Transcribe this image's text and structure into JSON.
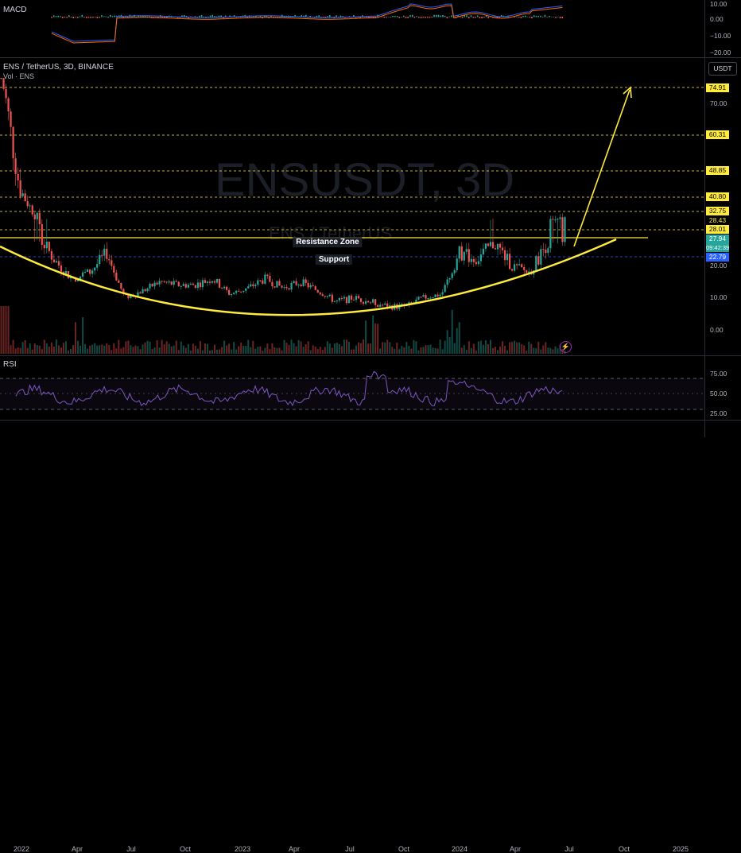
{
  "macd": {
    "label": "MACD",
    "axis": [
      "10.00",
      "0.00",
      "−10.00",
      "−20.00"
    ]
  },
  "main": {
    "symbol_line": "ENS / TetherUS, 3D, BINANCE",
    "volume_label": "Vol · ENS",
    "watermark_symbol": "ENSUSDT, 3D",
    "watermark_pair": "ENS / TetherUS",
    "currency_button": "USDT",
    "axis": [
      "70.00",
      "20.00",
      "10.00",
      "0.00"
    ],
    "price_tags": [
      {
        "value": "74.91",
        "kind": "level"
      },
      {
        "value": "60.31",
        "kind": "level"
      },
      {
        "value": "48.85",
        "kind": "level"
      },
      {
        "value": "40.80",
        "kind": "level"
      },
      {
        "value": "32.75",
        "kind": "level"
      },
      {
        "value": "28.43",
        "kind": "plain"
      },
      {
        "value": "28.01",
        "kind": "level"
      },
      {
        "value": "27.94",
        "kind": "last"
      },
      {
        "value": "09:42:39",
        "kind": "countdown"
      },
      {
        "value": "22.79",
        "kind": "support"
      }
    ],
    "resistance_label": "Resistance Zone",
    "support_label": "Support"
  },
  "rsi": {
    "label": "RSI",
    "axis": [
      "75.00",
      "50.00",
      "25.00"
    ]
  },
  "time_axis": [
    "2022",
    "Apr",
    "Jul",
    "Oct",
    "2023",
    "Apr",
    "Jul",
    "Oct",
    "2024",
    "Apr",
    "Jul",
    "Oct",
    "2025"
  ],
  "colors": {
    "level_tag": "#ffeb3b",
    "last_tag": "#26a69a",
    "support_tag": "#2962ff",
    "bull": "#26a69a",
    "bear": "#ef5350",
    "annotation": "#ffeb3b"
  },
  "chart_data": {
    "type": "candlestick",
    "title": "ENS / TetherUS, 3D, BINANCE",
    "ylim": [
      0,
      80
    ],
    "horizontal_levels": [
      74.91,
      60.31,
      48.85,
      40.8,
      32.75,
      28.01
    ],
    "resistance_zone": 28.43,
    "support": 22.79,
    "last_price": 27.94,
    "close_path": [
      [
        "2021-11",
        80
      ],
      [
        "2021-12",
        45
      ],
      [
        "2022-01",
        30
      ],
      [
        "2022-02",
        22
      ],
      [
        "2022-03",
        16
      ],
      [
        "2022-04",
        18
      ],
      [
        "2022-05",
        24
      ],
      [
        "2022-06",
        10
      ],
      [
        "2022-07",
        12
      ],
      [
        "2022-08",
        15
      ],
      [
        "2022-09",
        14
      ],
      [
        "2022-10",
        14
      ],
      [
        "2022-11",
        16
      ],
      [
        "2022-12",
        11
      ],
      [
        "2023-01",
        13
      ],
      [
        "2023-02",
        16
      ],
      [
        "2023-03",
        13
      ],
      [
        "2023-04",
        15
      ],
      [
        "2023-05",
        12
      ],
      [
        "2023-06",
        9
      ],
      [
        "2023-07",
        10
      ],
      [
        "2023-08",
        9
      ],
      [
        "2023-09",
        8
      ],
      [
        "2023-10",
        8
      ],
      [
        "2023-11",
        10
      ],
      [
        "2023-12",
        11
      ],
      [
        "2024-01",
        24
      ],
      [
        "2024-02",
        22
      ],
      [
        "2024-03",
        27
      ],
      [
        "2024-04",
        20
      ],
      [
        "2024-05",
        18
      ],
      [
        "2024-06",
        27
      ],
      [
        "2024-07",
        27.94
      ]
    ]
  }
}
